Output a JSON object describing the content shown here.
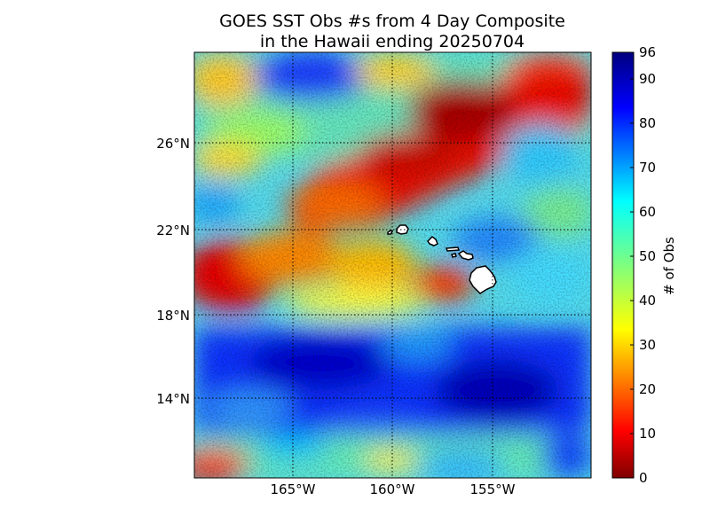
{
  "title_line1": "GOES SST Obs #s from 4 Day Composite",
  "title_line2": "in the Hawaii ending 20250704",
  "map": {
    "lat_ticks": [
      "26°N",
      "22°N",
      "18°N",
      "14°N"
    ],
    "lon_ticks": [
      "165°W",
      "160°W",
      "155°W"
    ],
    "gridlines": "dotted",
    "colormap": "jet",
    "islands": [
      "Kauai",
      "Oahu",
      "Molokai",
      "Lanai",
      "Maui",
      "Kahoolawe",
      "Hawaii"
    ]
  },
  "colorbar": {
    "label": "# of Obs",
    "min": 0,
    "max": 96,
    "ticks": [
      "0",
      "10",
      "20",
      "30",
      "40",
      "50",
      "60",
      "70",
      "80",
      "90",
      "96"
    ],
    "colors": [
      "#7f0000",
      "#ff0000",
      "#ff7f00",
      "#ffff00",
      "#7fff7f",
      "#00ffff",
      "#007fff",
      "#0000ff",
      "#00007f"
    ]
  }
}
